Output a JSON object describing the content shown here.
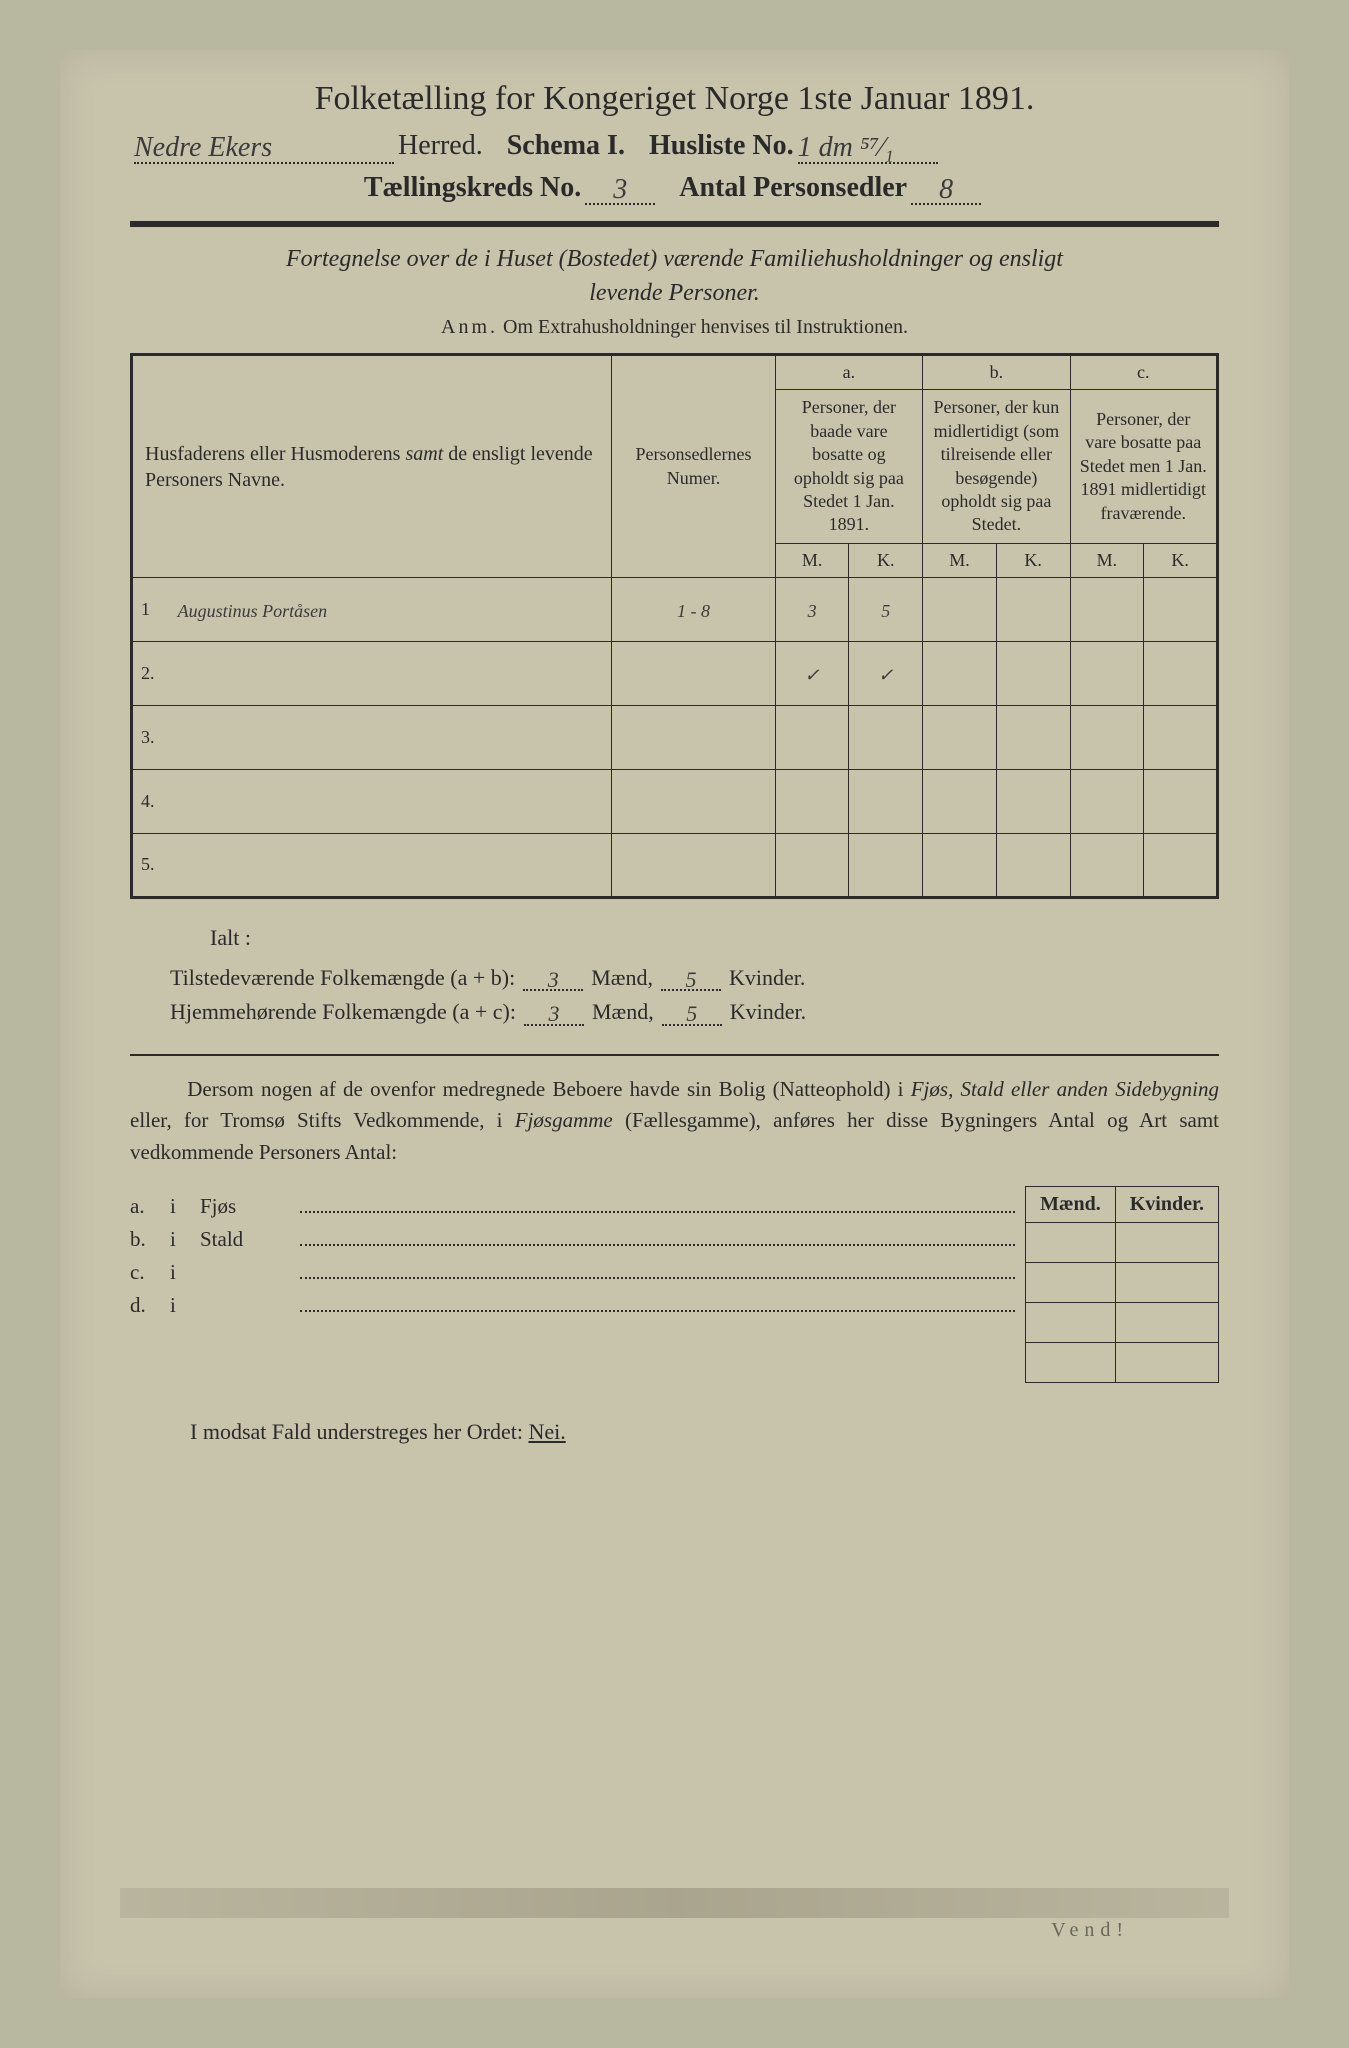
{
  "header": {
    "title": "Folketælling for Kongeriget Norge 1ste Januar 1891.",
    "herred_value": "Nedre Ekers",
    "herred_label": "Herred.",
    "schema_label": "Schema I.",
    "husliste_label": "Husliste No.",
    "husliste_value": "1 dm ⁵⁷⁄₁",
    "kreds_label": "Tællingskreds No.",
    "kreds_value": "3",
    "antal_label": "Antal Personsedler",
    "antal_value": "8"
  },
  "intro": {
    "line1": "Fortegnelse over de i Huset (Bostedet) værende Familiehusholdninger og ensligt",
    "line2": "levende Personer.",
    "anm_label": "Anm.",
    "anm_text": "Om Extrahusholdninger henvises til Instruktionen."
  },
  "table": {
    "col1_header": "Husfaderens eller Husmoderens samt de ensligt levende Personers Navne.",
    "col2_header": "Personsedlernes Numer.",
    "col_a_label": "a.",
    "col_a_header": "Personer, der baade vare bosatte og opholdt sig paa Stedet 1 Jan. 1891.",
    "col_b_label": "b.",
    "col_b_header": "Personer, der kun midlertidigt (som tilreisende eller besøgende) opholdt sig paa Stedet.",
    "col_c_label": "c.",
    "col_c_header": "Personer, der vare bosatte paa Stedet men 1 Jan. 1891 midlertidigt fraværende.",
    "m_label": "M.",
    "k_label": "K.",
    "rows": [
      {
        "num": "1",
        "name": "Augustinus Portåsen",
        "sedler": "1 - 8",
        "a_m": "3",
        "a_k": "5",
        "b_m": "",
        "b_k": "",
        "c_m": "",
        "c_k": ""
      },
      {
        "num": "2.",
        "name": "",
        "sedler": "",
        "a_m": "✓",
        "a_k": "✓",
        "b_m": "",
        "b_k": "",
        "c_m": "",
        "c_k": ""
      },
      {
        "num": "3.",
        "name": "",
        "sedler": "",
        "a_m": "",
        "a_k": "",
        "b_m": "",
        "b_k": "",
        "c_m": "",
        "c_k": ""
      },
      {
        "num": "4.",
        "name": "",
        "sedler": "",
        "a_m": "",
        "a_k": "",
        "b_m": "",
        "b_k": "",
        "c_m": "",
        "c_k": ""
      },
      {
        "num": "5.",
        "name": "",
        "sedler": "",
        "a_m": "",
        "a_k": "",
        "b_m": "",
        "b_k": "",
        "c_m": "",
        "c_k": ""
      }
    ]
  },
  "summary": {
    "ialt": "Ialt :",
    "line1_label": "Tilstedeværende Folkemængde (a + b):",
    "line1_m": "3",
    "line1_k": "5",
    "line2_label": "Hjemmehørende Folkemængde (a + c):",
    "line2_m": "3",
    "line2_k": "5",
    "maend": "Mænd,",
    "kvinder": "Kvinder."
  },
  "paragraph": {
    "text1": "Dersom nogen af de ovenfor medregnede Beboere havde sin Bolig (Natteophold) i ",
    "fjos": "Fjøs, Stald eller anden Sidebygning",
    "text2": " eller, for Tromsø Stifts Vedkommende, i ",
    "fjosgamme": "Fjøsgamme",
    "text3": " (Fællesgamme), anføres her disse Bygningers Antal og Art samt vedkommende Personers Antal:"
  },
  "side": {
    "header_m": "Mænd.",
    "header_k": "Kvinder.",
    "rows": [
      {
        "label": "a.",
        "i": "i",
        "name": "Fjøs"
      },
      {
        "label": "b.",
        "i": "i",
        "name": "Stald"
      },
      {
        "label": "c.",
        "i": "i",
        "name": ""
      },
      {
        "label": "d.",
        "i": "i",
        "name": ""
      }
    ]
  },
  "nei": {
    "text": "I modsat Fald understreges her Ordet: ",
    "nei": "Nei."
  },
  "vendt": "Vend!",
  "colors": {
    "bg": "#c8c4ac",
    "text": "#2a2a2a",
    "handwriting": "#3a3a3a"
  }
}
